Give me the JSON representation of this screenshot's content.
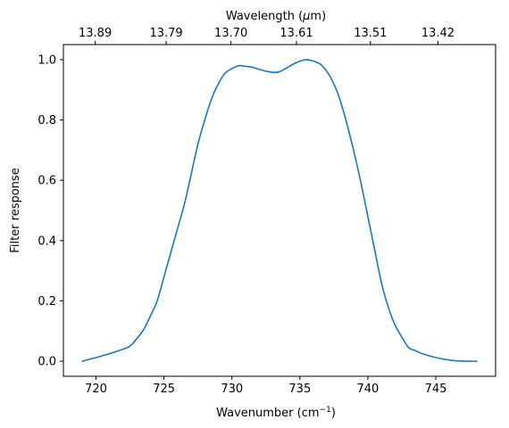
{
  "chart_data": {
    "type": "line",
    "xlabel": "Wavenumber (cm",
    "xlabel_sup": "−1",
    "xlabel_tail": ")",
    "ylabel": "Filter response",
    "top_axis_label": "Wavelength (",
    "top_axis_label_mu": "μ",
    "top_axis_label_tail": "m)",
    "xlim": [
      717.6,
      749.4
    ],
    "ylim": [
      -0.05,
      1.05
    ],
    "x_ticks": [
      {
        "value": 720,
        "label": "720"
      },
      {
        "value": 725,
        "label": "725"
      },
      {
        "value": 730,
        "label": "730"
      },
      {
        "value": 735,
        "label": "735"
      },
      {
        "value": 740,
        "label": "740"
      },
      {
        "value": 745,
        "label": "745"
      }
    ],
    "y_ticks": [
      {
        "value": 0.0,
        "label": "0.0"
      },
      {
        "value": 0.2,
        "label": "0.2"
      },
      {
        "value": 0.4,
        "label": "0.4"
      },
      {
        "value": 0.6,
        "label": "0.6"
      },
      {
        "value": 0.8,
        "label": "0.8"
      },
      {
        "value": 1.0,
        "label": "1.0"
      }
    ],
    "top_ticks": [
      {
        "value": 719.94,
        "label": "13.89"
      },
      {
        "value": 725.16,
        "label": "13.79"
      },
      {
        "value": 729.93,
        "label": "13.70"
      },
      {
        "value": 734.75,
        "label": "13.61"
      },
      {
        "value": 740.19,
        "label": "13.51"
      },
      {
        "value": 745.16,
        "label": "13.42"
      }
    ],
    "color": "#1f77b4",
    "grid": false,
    "series": [
      {
        "x": [
          719.0,
          720.0,
          721.0,
          722.0,
          722.5,
          723.0,
          723.5,
          724.0,
          724.5,
          725.0,
          725.5,
          726.0,
          726.5,
          727.0,
          727.5,
          728.0,
          728.5,
          729.0,
          729.5,
          730.0,
          730.5,
          731.0,
          731.5,
          732.0,
          732.5,
          733.0,
          733.5,
          734.0,
          734.5,
          735.0,
          735.5,
          736.0,
          736.5,
          737.0,
          737.5,
          738.0,
          738.5,
          739.0,
          739.5,
          740.0,
          740.5,
          741.0,
          741.5,
          742.0,
          742.5,
          743.0,
          743.5,
          744.0,
          745.0,
          746.0,
          747.0,
          748.0
        ],
        "y": [
          0.0,
          0.012,
          0.025,
          0.04,
          0.05,
          0.075,
          0.105,
          0.15,
          0.2,
          0.28,
          0.36,
          0.44,
          0.52,
          0.62,
          0.72,
          0.8,
          0.87,
          0.92,
          0.955,
          0.97,
          0.98,
          0.978,
          0.975,
          0.968,
          0.962,
          0.958,
          0.96,
          0.972,
          0.985,
          0.995,
          1.0,
          0.995,
          0.985,
          0.96,
          0.92,
          0.86,
          0.78,
          0.69,
          0.59,
          0.48,
          0.37,
          0.26,
          0.18,
          0.12,
          0.08,
          0.045,
          0.035,
          0.025,
          0.012,
          0.004,
          0.0,
          0.0
        ]
      }
    ]
  }
}
